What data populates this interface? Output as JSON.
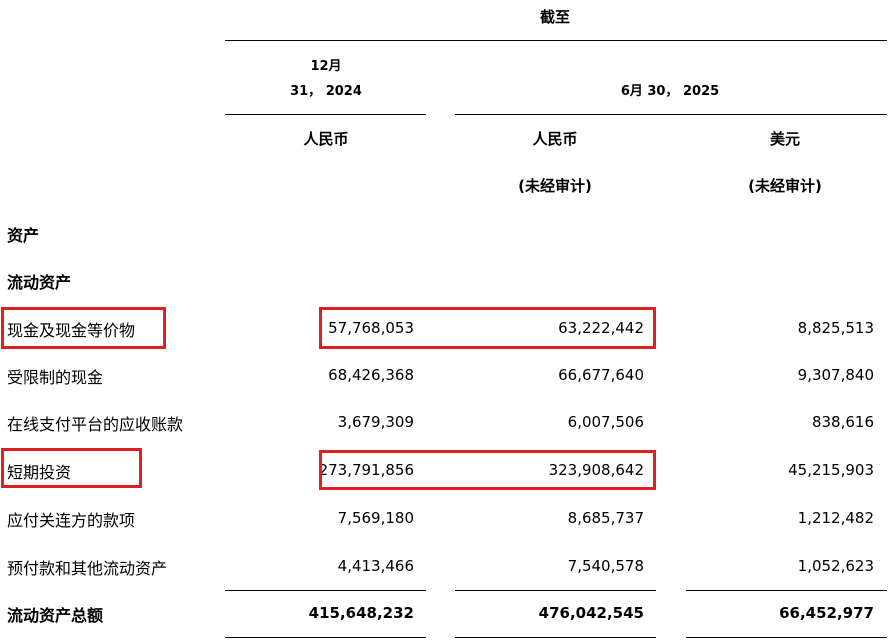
{
  "header": {
    "as_of": "截至",
    "col1_date_line1": "12月",
    "col1_date_line2": "31， 2024",
    "col23_date": "6月 30， 2025",
    "col1_currency": "人民币",
    "col2_currency": "人民币",
    "col3_currency": "美元",
    "col2_note": "(未经审计)",
    "col3_note": "(未经审计)"
  },
  "sections": {
    "assets": "资产",
    "current_assets": "流动资产"
  },
  "rows": [
    {
      "label": "现金及现金等价物",
      "v1": "57,768,053",
      "v2": "63,222,442",
      "v3": "8,825,513"
    },
    {
      "label": "受限制的现金",
      "v1": "68,426,368",
      "v2": "66,677,640",
      "v3": "9,307,840"
    },
    {
      "label": "在线支付平台的应收账款",
      "v1": "3,679,309",
      "v2": "6,007,506",
      "v3": "838,616"
    },
    {
      "label": "短期投资",
      "v1": "273,791,856",
      "v2": "323,908,642",
      "v3": "45,215,903"
    },
    {
      "label": "应付关连方的款项",
      "v1": "7,569,180",
      "v2": "8,685,737",
      "v3": "1,212,482"
    },
    {
      "label": "预付款和其他流动资产",
      "v1": "4,413,466",
      "v2": "7,540,578",
      "v3": "1,052,623"
    },
    {
      "label": "流动资产总额",
      "v1": "415,648,232",
      "v2": "476,042,545",
      "v3": "66,452,977"
    }
  ],
  "highlight_color": "#e02020"
}
